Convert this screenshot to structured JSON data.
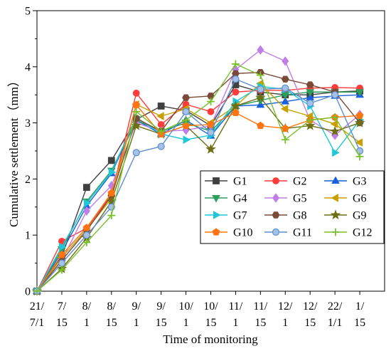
{
  "chart_data": {
    "type": "line",
    "xlabel": "Time of monitoring",
    "ylabel": "Cumulative settlement（mm）",
    "ylim": [
      0,
      5
    ],
    "yticks": [
      0,
      1,
      2,
      3,
      4,
      5
    ],
    "grid": false,
    "legend": "lower-right",
    "categories": [
      "21/7/1",
      "7/15",
      "8/1",
      "8/15",
      "9/1",
      "9/15",
      "10/1",
      "10/15",
      "11/1",
      "11/15",
      "12/1",
      "12/15",
      "22/1/1",
      "1/15"
    ],
    "series": [
      {
        "name": "G1",
        "color": "#404040",
        "marker": "square",
        "values": [
          0,
          0.62,
          1.85,
          2.33,
          3.06,
          3.3,
          3.22,
          2.95,
          3.68,
          3.55,
          3.5,
          3.5,
          3.55,
          3.57
        ]
      },
      {
        "name": "G2",
        "color": "#ff3c3c",
        "marker": "circle",
        "values": [
          0,
          0.89,
          1.12,
          1.72,
          3.53,
          2.97,
          3.33,
          3.2,
          3.55,
          3.58,
          3.58,
          3.62,
          3.63,
          3.62
        ]
      },
      {
        "name": "G3",
        "color": "#1a5fdc",
        "marker": "triangle-up",
        "values": [
          0,
          0.7,
          1.52,
          2.1,
          3.05,
          2.8,
          3.05,
          2.77,
          3.3,
          3.32,
          3.38,
          3.45,
          3.48,
          3.5
        ]
      },
      {
        "name": "G4",
        "color": "#2e9e5b",
        "marker": "triangle-down",
        "values": [
          0,
          0.75,
          1.6,
          2.15,
          3.05,
          2.85,
          3.0,
          2.85,
          3.3,
          3.4,
          3.5,
          3.55,
          3.55,
          3.55
        ]
      },
      {
        "name": "G5",
        "color": "#c07fe6",
        "marker": "diamond",
        "values": [
          0,
          0.55,
          1.43,
          1.88,
          3.0,
          2.85,
          2.87,
          2.95,
          3.95,
          4.3,
          4.1,
          3.05,
          2.78,
          3.15
        ]
      },
      {
        "name": "G6",
        "color": "#c8a000",
        "marker": "triangle-left",
        "values": [
          0,
          0.6,
          1.1,
          1.65,
          3.33,
          3.12,
          3.25,
          3.0,
          3.3,
          3.7,
          3.25,
          3.12,
          2.98,
          2.65
        ]
      },
      {
        "name": "G7",
        "color": "#1ec8d8",
        "marker": "triangle-right",
        "values": [
          0,
          0.79,
          1.57,
          2.12,
          3.1,
          2.8,
          2.7,
          2.78,
          3.38,
          3.65,
          3.6,
          3.3,
          2.47,
          3.05
        ]
      },
      {
        "name": "G8",
        "color": "#7b4b3a",
        "marker": "hexagon",
        "values": [
          0,
          0.55,
          1.08,
          1.7,
          3.08,
          2.85,
          3.45,
          3.48,
          3.88,
          3.9,
          3.78,
          3.68,
          3.55,
          3.0
        ]
      },
      {
        "name": "G9",
        "color": "#6e6e14",
        "marker": "star",
        "values": [
          0,
          0.4,
          0.95,
          1.6,
          2.95,
          2.8,
          2.95,
          2.53,
          3.3,
          3.45,
          2.9,
          2.95,
          2.85,
          3.0
        ]
      },
      {
        "name": "G10",
        "color": "#ff7410",
        "marker": "pentagon",
        "values": [
          0,
          0.65,
          1.13,
          1.75,
          3.32,
          2.8,
          2.95,
          2.97,
          3.18,
          2.95,
          2.9,
          3.05,
          3.1,
          3.13
        ]
      },
      {
        "name": "G11",
        "color": "#5b8fd0",
        "marker": "sphere",
        "values": [
          0,
          0.5,
          1.0,
          1.5,
          2.47,
          2.58,
          3.2,
          2.83,
          3.78,
          3.6,
          3.62,
          3.35,
          3.5,
          2.5
        ]
      },
      {
        "name": "G12",
        "color": "#78c02c",
        "marker": "plus",
        "values": [
          0,
          0.38,
          0.87,
          1.35,
          3.2,
          2.85,
          3.05,
          3.38,
          4.05,
          3.85,
          2.7,
          3.05,
          3.1,
          2.4
        ]
      }
    ]
  }
}
